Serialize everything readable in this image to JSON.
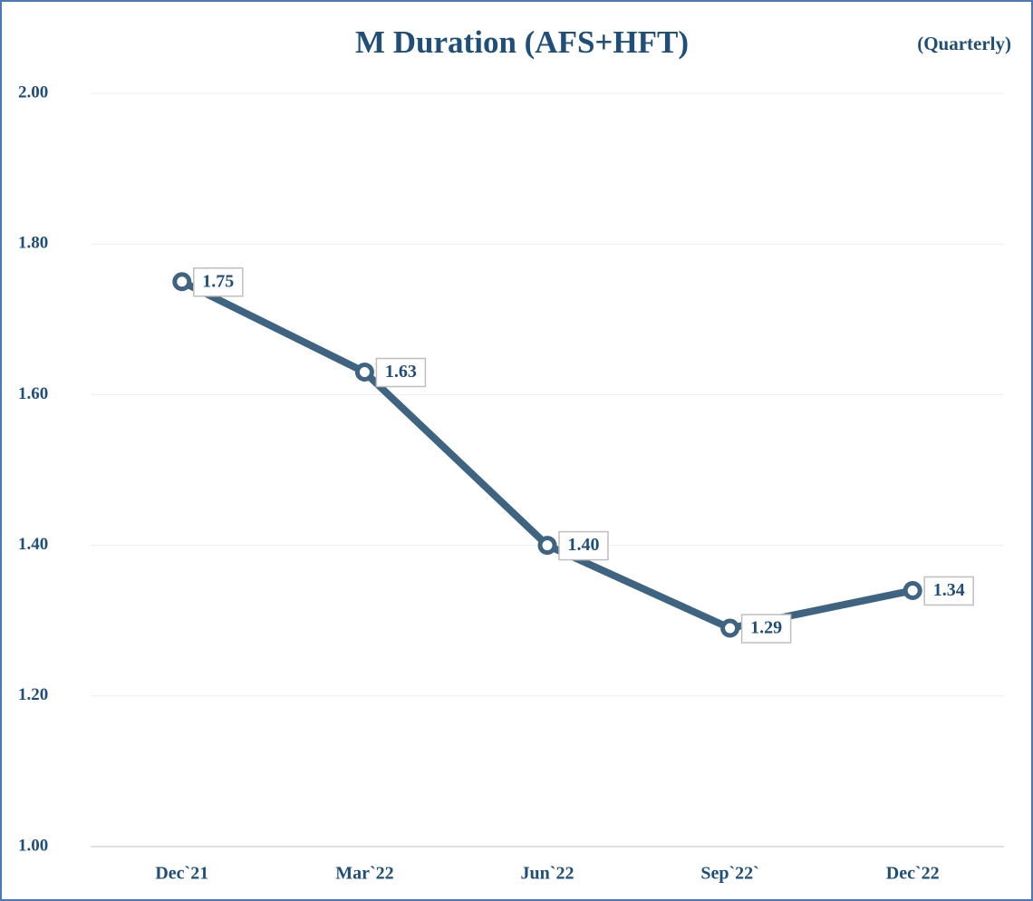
{
  "chart_data": {
    "type": "line",
    "title": "M Duration (AFS+HFT)",
    "subtitle": "(Quarterly)",
    "categories": [
      "Dec`21",
      "Mar`22",
      "Jun`22",
      "Sep`22`",
      "Dec`22"
    ],
    "series": [
      {
        "name": "M Duration",
        "color": "#3e6482",
        "values": [
          1.75,
          1.63,
          1.4,
          1.29,
          1.34
        ],
        "value_labels": [
          "1.75",
          "1.63",
          "1.40",
          "1.29",
          "1.34"
        ]
      }
    ],
    "ylim": [
      1,
      2
    ],
    "yticks": [
      {
        "value": 1,
        "label": "1.00"
      },
      {
        "value": 1.2,
        "label": "1.20"
      },
      {
        "value": 1.4,
        "label": "1.40"
      },
      {
        "value": 1.6,
        "label": "1.60"
      },
      {
        "value": 1.8,
        "label": "1.80"
      },
      {
        "value": 2,
        "label": "2.00"
      }
    ],
    "grid": true
  }
}
